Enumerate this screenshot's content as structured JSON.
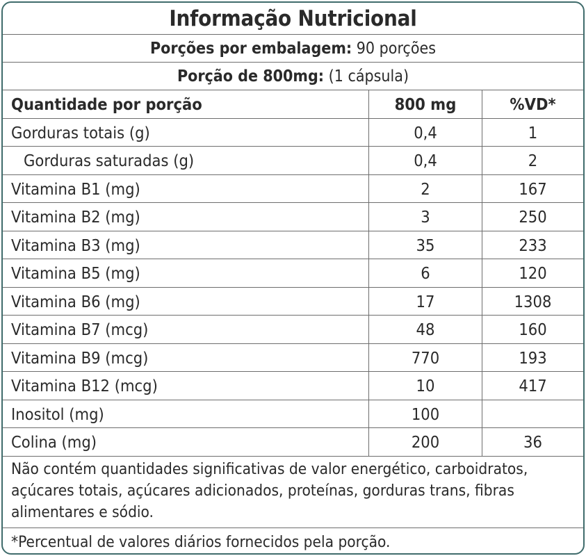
{
  "table": {
    "title": "Informação Nutricional",
    "servings_label": "Porções por embalagem:",
    "servings_value": "90 porções",
    "portion_label": "Porção de 800mg:",
    "portion_value": "(1 cápsula)",
    "headers": {
      "nutrient": "Quantidade por porção",
      "amount": "800 mg",
      "dv": "%VD*"
    },
    "rows": [
      {
        "nutrient": "Gorduras totais (g)",
        "amount": "0,4",
        "dv": "1"
      },
      {
        "nutrient": "Gorduras saturadas (g)",
        "amount": "0,4",
        "dv": "2"
      },
      {
        "nutrient": "Vitamina B1 (mg)",
        "amount": "2",
        "dv": "167"
      },
      {
        "nutrient": "Vitamina B2 (mg)",
        "amount": "3",
        "dv": "250"
      },
      {
        "nutrient": "Vitamina B3 (mg)",
        "amount": "35",
        "dv": "233"
      },
      {
        "nutrient": "Vitamina B5 (mg)",
        "amount": "6",
        "dv": "120"
      },
      {
        "nutrient": "Vitamina B6 (mg)",
        "amount": "17",
        "dv": "1308"
      },
      {
        "nutrient": "Vitamina B7 (mcg)",
        "amount": "48",
        "dv": "160"
      },
      {
        "nutrient": "Vitamina B9 (mcg)",
        "amount": "770",
        "dv": "193"
      },
      {
        "nutrient": "Vitamina B12 (mcg)",
        "amount": "10",
        "dv": "417"
      },
      {
        "nutrient": "Inositol (mg)",
        "amount": "100",
        "dv": ""
      },
      {
        "nutrient": "Colina (mg)",
        "amount": "200",
        "dv": "36"
      }
    ],
    "note": "Não contém quantidades significativas de valor energético, carboidratos, açúcares totais, açúcares adicionados, proteínas, gorduras trans, fibras alimentares e sódio.",
    "footnote": "*Percentual de valores diários fornecidos pela porção."
  },
  "colors": {
    "border": "#3f6b6b",
    "rule": "#6d6d6d",
    "text": "#2a2a2a"
  }
}
